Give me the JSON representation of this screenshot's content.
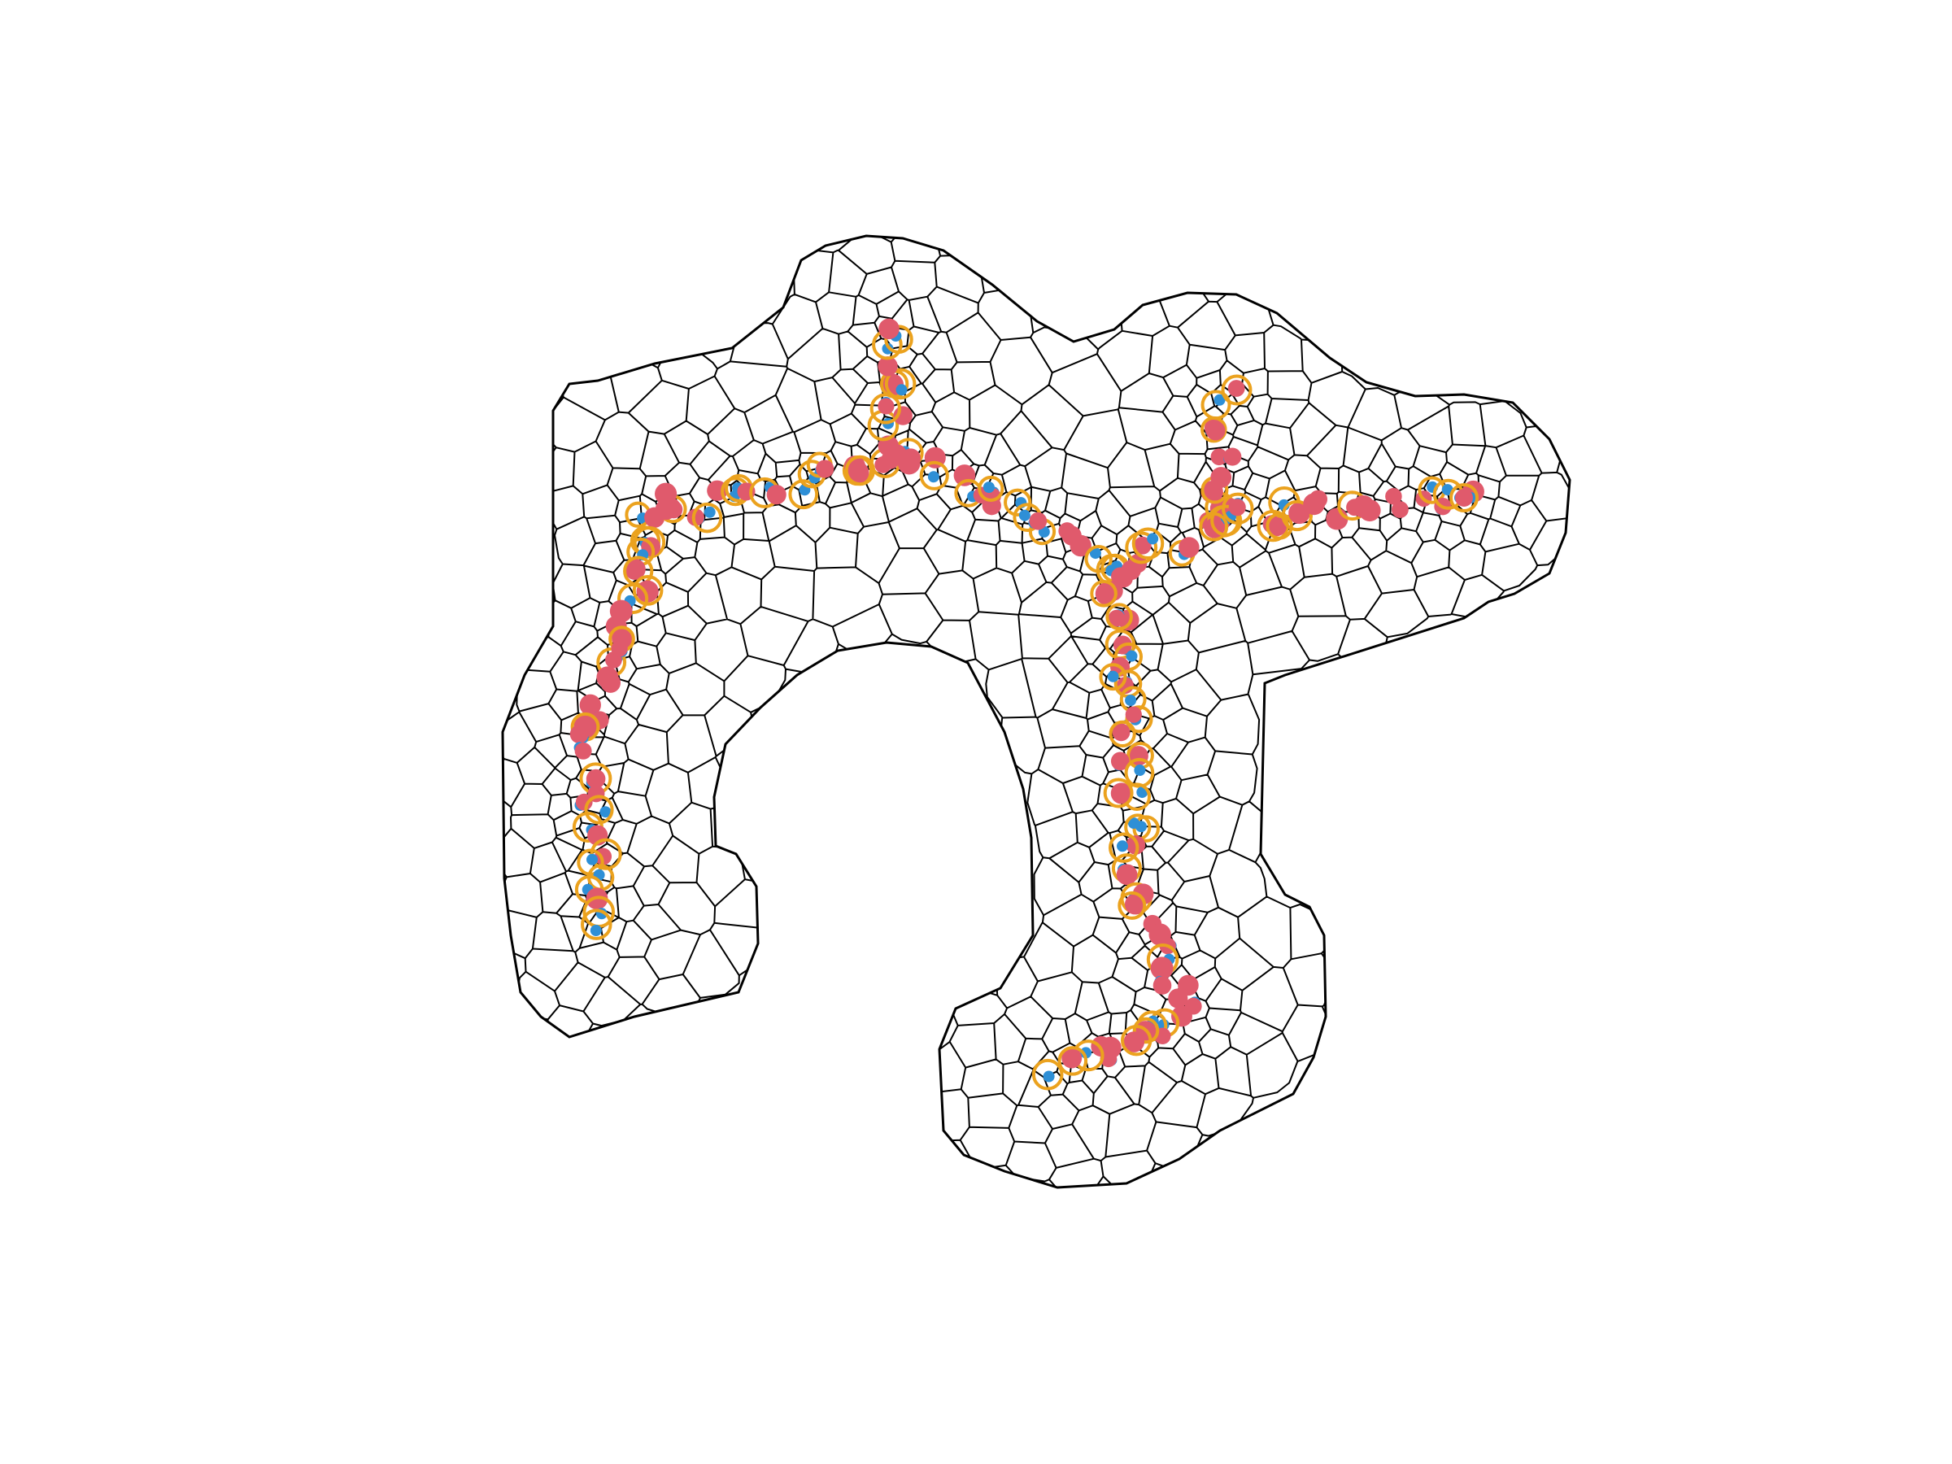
{
  "figure": {
    "kind": "voronoi-cell-segmentation",
    "background_color": "#ffffff",
    "cell_edge_color": "#000000",
    "marker_colors": {
      "small_dot": "#2e8fd6",
      "filled_disc": "#e05a6c",
      "ring": "#eba21e"
    }
  }
}
